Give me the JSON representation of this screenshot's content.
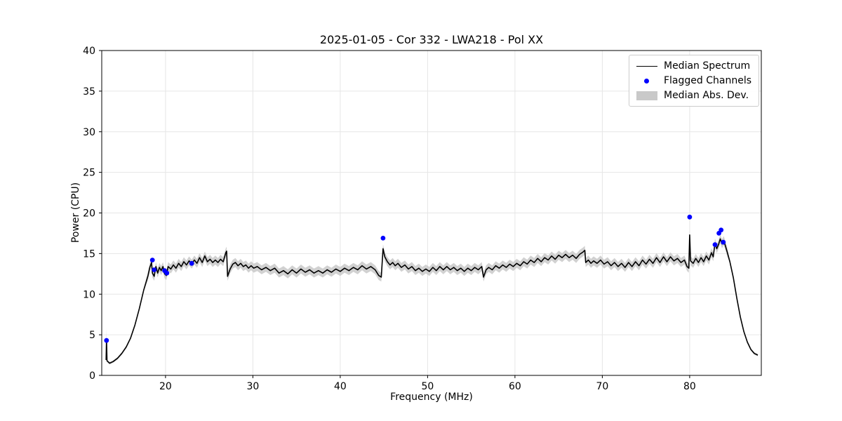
{
  "chart_data": {
    "type": "line",
    "title": "2025-01-05 - Cor 332 - LWA218 - Pol XX",
    "xlabel": "Frequency (MHz)",
    "ylabel": "Power (CPU)",
    "xlim": [
      12.7,
      88.2
    ],
    "ylim": [
      0,
      40
    ],
    "xticks": [
      20,
      30,
      40,
      50,
      60,
      70,
      80
    ],
    "yticks": [
      0,
      5,
      10,
      15,
      20,
      25,
      30,
      35,
      40
    ],
    "grid": true,
    "colors": {
      "line": "#000000",
      "flagged": "#0000ff",
      "band": "#c9c9c9",
      "grid": "#e6e6e6",
      "spine": "#000000"
    },
    "legend": [
      {
        "label": "Median Spectrum",
        "type": "line",
        "color": "#000000"
      },
      {
        "label": "Flagged Channels",
        "type": "dot",
        "color": "#0000ff"
      },
      {
        "label": "Median Abs. Dev.",
        "type": "band",
        "color": "#c9c9c9"
      }
    ],
    "mad_band": {
      "default": 0.55,
      "edge_value": 0.15,
      "low_x": 17.8,
      "high_x": 84.5,
      "spikes": [
        {
          "x": 13.25,
          "value": 1.3
        }
      ]
    },
    "median_spectrum": {
      "points": [
        [
          13.2,
          1.9
        ],
        [
          13.25,
          4.5
        ],
        [
          13.3,
          1.8
        ],
        [
          13.6,
          1.5
        ],
        [
          14,
          1.7
        ],
        [
          14.5,
          2.1
        ],
        [
          15,
          2.7
        ],
        [
          15.5,
          3.5
        ],
        [
          16,
          4.6
        ],
        [
          16.5,
          6.2
        ],
        [
          17,
          8.2
        ],
        [
          17.5,
          10.5
        ],
        [
          18,
          12.3
        ],
        [
          18.2,
          13.3
        ],
        [
          18.4,
          13.9
        ],
        [
          18.5,
          12.6
        ],
        [
          18.7,
          12.2
        ],
        [
          18.9,
          13.4
        ],
        [
          19.1,
          12.6
        ],
        [
          19.3,
          13.3
        ],
        [
          19.5,
          12.9
        ],
        [
          19.7,
          13.4
        ],
        [
          19.9,
          12.5
        ],
        [
          20.1,
          12.3
        ],
        [
          20.3,
          13.4
        ],
        [
          20.6,
          13.1
        ],
        [
          20.9,
          13.6
        ],
        [
          21.2,
          13.2
        ],
        [
          21.5,
          13.8
        ],
        [
          21.8,
          13.4
        ],
        [
          22.1,
          14
        ],
        [
          22.4,
          13.6
        ],
        [
          22.7,
          14.1
        ],
        [
          23,
          13.7
        ],
        [
          23.3,
          14.2
        ],
        [
          23.6,
          13.8
        ],
        [
          23.9,
          14.5
        ],
        [
          24.2,
          13.9
        ],
        [
          24.5,
          14.7
        ],
        [
          24.8,
          14
        ],
        [
          25.1,
          14.3
        ],
        [
          25.4,
          13.9
        ],
        [
          25.7,
          14.2
        ],
        [
          26,
          13.9
        ],
        [
          26.3,
          14.3
        ],
        [
          26.6,
          14
        ],
        [
          26.9,
          15.1
        ],
        [
          27,
          15.3
        ],
        [
          27.1,
          12.2
        ],
        [
          27.4,
          13.1
        ],
        [
          27.7,
          13.7
        ],
        [
          28,
          13.9
        ],
        [
          28.3,
          13.5
        ],
        [
          28.6,
          13.8
        ],
        [
          28.9,
          13.4
        ],
        [
          29.2,
          13.6
        ],
        [
          29.5,
          13.2
        ],
        [
          29.8,
          13.5
        ],
        [
          30.1,
          13.2
        ],
        [
          30.5,
          13.4
        ],
        [
          31,
          13
        ],
        [
          31.5,
          13.3
        ],
        [
          32,
          12.9
        ],
        [
          32.5,
          13.2
        ],
        [
          33,
          12.6
        ],
        [
          33.5,
          12.9
        ],
        [
          34,
          12.5
        ],
        [
          34.5,
          13
        ],
        [
          35,
          12.6
        ],
        [
          35.5,
          13.1
        ],
        [
          36,
          12.7
        ],
        [
          36.5,
          13
        ],
        [
          37,
          12.6
        ],
        [
          37.5,
          12.9
        ],
        [
          38,
          12.6
        ],
        [
          38.5,
          13
        ],
        [
          39,
          12.7
        ],
        [
          39.5,
          13.1
        ],
        [
          40,
          12.8
        ],
        [
          40.5,
          13.2
        ],
        [
          41,
          12.9
        ],
        [
          41.5,
          13.3
        ],
        [
          42,
          13
        ],
        [
          42.5,
          13.5
        ],
        [
          43,
          13.1
        ],
        [
          43.5,
          13.4
        ],
        [
          44,
          13
        ],
        [
          44.4,
          12.3
        ],
        [
          44.7,
          12.1
        ],
        [
          44.9,
          15.6
        ],
        [
          45.1,
          14.6
        ],
        [
          45.4,
          14
        ],
        [
          45.7,
          13.6
        ],
        [
          46,
          13.9
        ],
        [
          46.3,
          13.5
        ],
        [
          46.6,
          13.8
        ],
        [
          47,
          13.3
        ],
        [
          47.4,
          13.6
        ],
        [
          47.8,
          13.1
        ],
        [
          48.2,
          13.4
        ],
        [
          48.6,
          12.9
        ],
        [
          49,
          13.2
        ],
        [
          49.4,
          12.8
        ],
        [
          49.8,
          13.1
        ],
        [
          50.2,
          12.8
        ],
        [
          50.6,
          13.3
        ],
        [
          51,
          12.9
        ],
        [
          51.4,
          13.4
        ],
        [
          51.8,
          13
        ],
        [
          52.2,
          13.4
        ],
        [
          52.6,
          13
        ],
        [
          53,
          13.3
        ],
        [
          53.4,
          12.9
        ],
        [
          53.8,
          13.2
        ],
        [
          54.2,
          12.8
        ],
        [
          54.6,
          13.2
        ],
        [
          55,
          12.9
        ],
        [
          55.4,
          13.3
        ],
        [
          55.8,
          13
        ],
        [
          56.2,
          13.4
        ],
        [
          56.4,
          12.1
        ],
        [
          56.7,
          13
        ],
        [
          57,
          13.3
        ],
        [
          57.4,
          13
        ],
        [
          57.8,
          13.5
        ],
        [
          58.2,
          13.2
        ],
        [
          58.6,
          13.6
        ],
        [
          59,
          13.3
        ],
        [
          59.4,
          13.7
        ],
        [
          59.8,
          13.4
        ],
        [
          60.2,
          13.8
        ],
        [
          60.6,
          13.5
        ],
        [
          61,
          14
        ],
        [
          61.4,
          13.7
        ],
        [
          61.8,
          14.2
        ],
        [
          62.2,
          13.9
        ],
        [
          62.6,
          14.4
        ],
        [
          63,
          14
        ],
        [
          63.4,
          14.5
        ],
        [
          63.8,
          14.2
        ],
        [
          64.2,
          14.7
        ],
        [
          64.6,
          14.3
        ],
        [
          65,
          14.8
        ],
        [
          65.4,
          14.5
        ],
        [
          65.8,
          14.9
        ],
        [
          66.2,
          14.5
        ],
        [
          66.6,
          14.8
        ],
        [
          67,
          14.4
        ],
        [
          67.4,
          14.9
        ],
        [
          67.8,
          15.2
        ],
        [
          68,
          15.4
        ],
        [
          68.1,
          13.9
        ],
        [
          68.4,
          14.2
        ],
        [
          68.7,
          13.8
        ],
        [
          69,
          14.1
        ],
        [
          69.4,
          13.8
        ],
        [
          69.8,
          14.2
        ],
        [
          70.2,
          13.7
        ],
        [
          70.6,
          14
        ],
        [
          71,
          13.5
        ],
        [
          71.4,
          13.9
        ],
        [
          71.8,
          13.4
        ],
        [
          72.2,
          13.8
        ],
        [
          72.6,
          13.3
        ],
        [
          73,
          13.9
        ],
        [
          73.4,
          13.4
        ],
        [
          73.8,
          14
        ],
        [
          74.2,
          13.5
        ],
        [
          74.6,
          14.2
        ],
        [
          75,
          13.7
        ],
        [
          75.4,
          14.3
        ],
        [
          75.8,
          13.8
        ],
        [
          76.2,
          14.5
        ],
        [
          76.6,
          13.9
        ],
        [
          77,
          14.6
        ],
        [
          77.4,
          14
        ],
        [
          77.8,
          14.6
        ],
        [
          78.2,
          14.1
        ],
        [
          78.6,
          14.4
        ],
        [
          79,
          13.9
        ],
        [
          79.4,
          14.2
        ],
        [
          79.7,
          13.4
        ],
        [
          79.9,
          13.2
        ],
        [
          80,
          17.3
        ],
        [
          80.1,
          14.1
        ],
        [
          80.4,
          13.8
        ],
        [
          80.7,
          14.4
        ],
        [
          81,
          13.9
        ],
        [
          81.3,
          14.5
        ],
        [
          81.6,
          14
        ],
        [
          81.9,
          14.7
        ],
        [
          82.2,
          14.2
        ],
        [
          82.5,
          15.1
        ],
        [
          82.7,
          14.6
        ],
        [
          82.9,
          16.3
        ],
        [
          83.1,
          15.6
        ],
        [
          83.3,
          16.1
        ],
        [
          83.5,
          16.8
        ],
        [
          83.7,
          16.2
        ],
        [
          83.9,
          16.6
        ],
        [
          84.1,
          15.9
        ],
        [
          84.3,
          15.2
        ],
        [
          84.6,
          14
        ],
        [
          85,
          12
        ],
        [
          85.4,
          9.5
        ],
        [
          85.8,
          7.2
        ],
        [
          86.2,
          5.4
        ],
        [
          86.6,
          4.1
        ],
        [
          87,
          3.2
        ],
        [
          87.4,
          2.7
        ],
        [
          87.8,
          2.5
        ]
      ]
    },
    "flagged_channels": {
      "points": [
        [
          13.25,
          4.3
        ],
        [
          18.5,
          14.2
        ],
        [
          18.7,
          13.0
        ],
        [
          19.9,
          12.9
        ],
        [
          20.15,
          12.6
        ],
        [
          23.0,
          13.8
        ],
        [
          44.9,
          16.9
        ],
        [
          80.0,
          19.5
        ],
        [
          82.9,
          16.1
        ],
        [
          83.35,
          17.5
        ],
        [
          83.6,
          17.9
        ],
        [
          83.85,
          16.4
        ]
      ]
    }
  }
}
